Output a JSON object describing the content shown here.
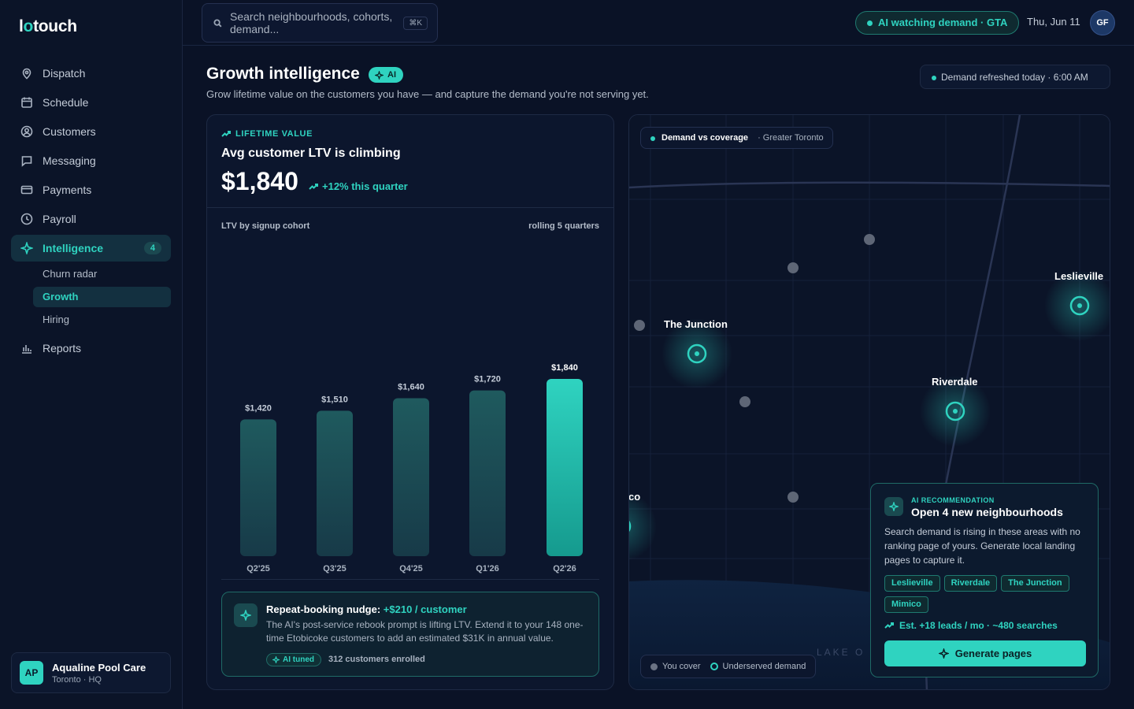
{
  "brand": {
    "prefix": "l",
    "accent": "o",
    "suffix": "touch"
  },
  "sidebar": {
    "items": [
      {
        "label": "Dispatch",
        "icon": "pin-icon"
      },
      {
        "label": "Schedule",
        "icon": "calendar-icon"
      },
      {
        "label": "Customers",
        "icon": "user-circle-icon"
      },
      {
        "label": "Messaging",
        "icon": "chat-icon"
      },
      {
        "label": "Payments",
        "icon": "card-icon"
      },
      {
        "label": "Payroll",
        "icon": "clock-icon"
      },
      {
        "label": "Intelligence",
        "icon": "sparkle-icon",
        "badge": "4",
        "active": true
      },
      {
        "label": "Reports",
        "icon": "bar-chart-icon"
      }
    ],
    "subitems": [
      "Churn radar",
      "Growth",
      "Hiring"
    ],
    "active_subitem": "Growth",
    "org": {
      "initials": "AP",
      "name": "Aqualine Pool Care",
      "location": "Toronto · HQ"
    }
  },
  "topbar": {
    "search_placeholder": "Search neighbourhoods, cohorts, demand...",
    "shortcut": "⌘K",
    "ai_status": "AI watching demand · GTA",
    "date": "Thu, Jun 11",
    "user_initials": "GF"
  },
  "header": {
    "title": "Growth intelligence",
    "ai_pill": "AI",
    "subtitle": "Grow lifetime value on the customers you have — and capture the demand you're not serving yet.",
    "refresh": "Demand refreshed today · 6:00 AM"
  },
  "ltv": {
    "eyebrow": "LIFETIME VALUE",
    "title": "Avg customer LTV is climbing",
    "value": "$1,840",
    "change": "+12% this quarter",
    "chart_title": "LTV by signup cohort",
    "chart_range": "rolling 5 quarters"
  },
  "chart_data": {
    "type": "bar",
    "title": "LTV by signup cohort",
    "subtitle": "rolling 5 quarters",
    "categories": [
      "Q2'25",
      "Q3'25",
      "Q4'25",
      "Q1'26",
      "Q2'26"
    ],
    "values": [
      1420,
      1510,
      1640,
      1720,
      1840
    ],
    "value_labels": [
      "$1,420",
      "$1,510",
      "$1,640",
      "$1,720",
      "$1,840"
    ],
    "ylim": [
      0,
      1840
    ],
    "grid": false,
    "highlight_index": 4,
    "colors": {
      "bar": "#1f5a5e",
      "highlight": "#2fd3c0"
    }
  },
  "nudge": {
    "title": "Repeat-booking nudge:",
    "highlight": "+$210 / customer",
    "body": "The AI's post-service rebook prompt is lifting LTV. Extend it to your 148 one-time Etobicoke customers to add an estimated $31K in annual value.",
    "pill": "AI tuned",
    "enrolled": "312 customers enrolled"
  },
  "map": {
    "tag": "Demand vs coverage",
    "tag_sub": "· Greater Toronto",
    "labels": [
      "The Junction",
      "Leslieville",
      "Riverdale",
      "co"
    ],
    "water_label": "LAKE O",
    "legend_cover": "You cover",
    "legend_underserved": "Underserved demand"
  },
  "recommendation": {
    "eyebrow": "AI RECOMMENDATION",
    "title": "Open 4 new neighbourhoods",
    "body": "Search demand is rising in these areas with no ranking page of yours. Generate local landing pages to capture it.",
    "chips": [
      "Leslieville",
      "Riverdale",
      "The Junction",
      "Mimico"
    ],
    "estimate": "Est. +18 leads / mo · ~480 searches",
    "button": "Generate pages"
  },
  "colors": {
    "accent": "#2fd3c0",
    "background": "#0a1226",
    "card": "#0c162d"
  }
}
